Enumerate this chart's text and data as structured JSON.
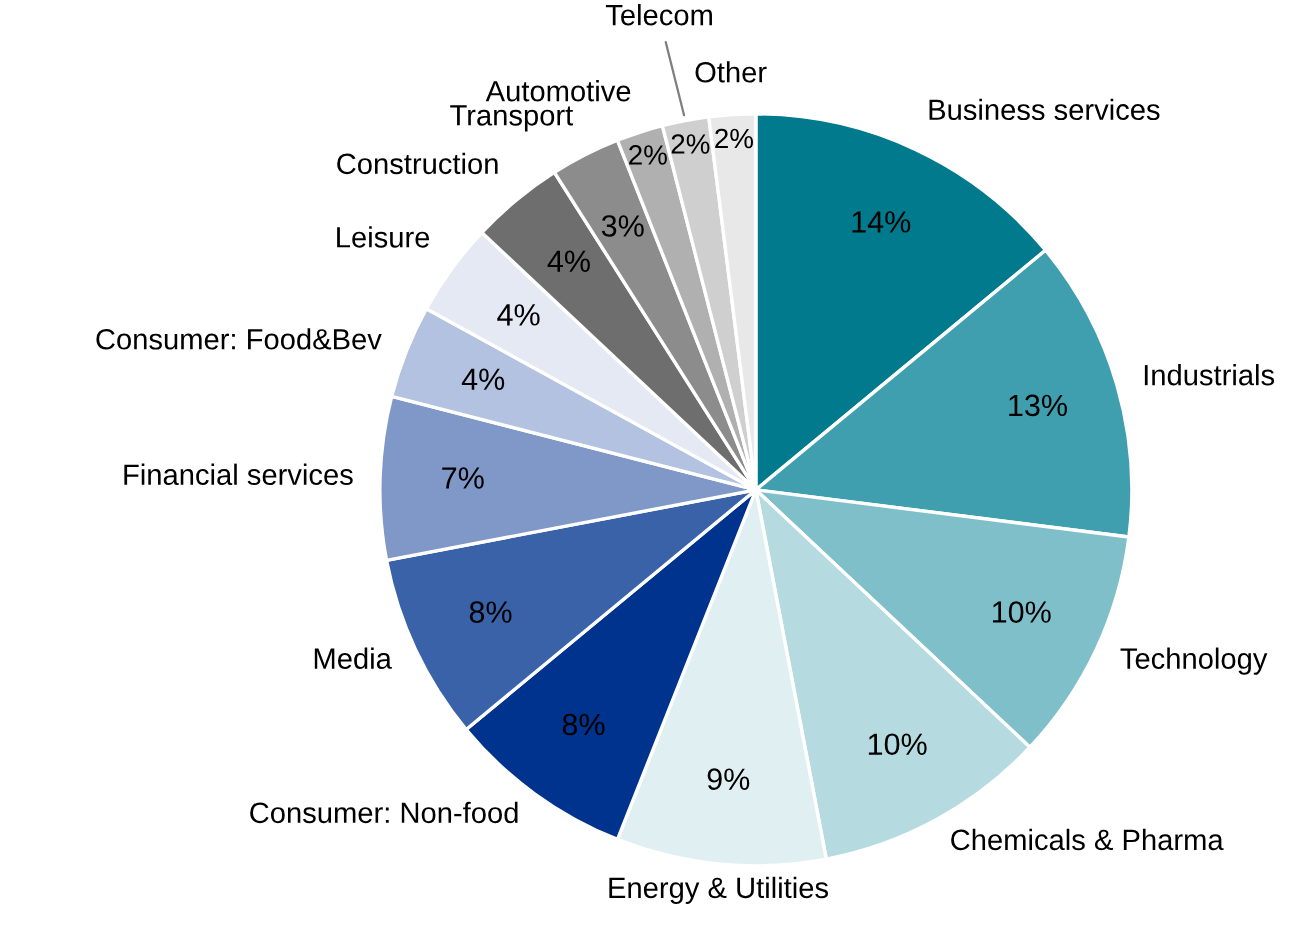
{
  "chart_data": {
    "type": "pie",
    "categories": [
      "Business services",
      "Industrials",
      "Technology",
      "Chemicals & Pharma",
      "Energy & Utilities",
      "Consumer: Non-food",
      "Media",
      "Financial services",
      "Consumer: Food&Bev",
      "Leisure",
      "Construction",
      "Transport",
      "Automotive",
      "Telecom",
      "Other"
    ],
    "values": [
      14,
      13,
      10,
      10,
      9,
      8,
      8,
      7,
      4,
      4,
      4,
      3,
      2,
      2,
      2
    ],
    "colors": [
      "#007a8c",
      "#3f9fae",
      "#7fbfca",
      "#b5dbe0",
      "#e0f0f2",
      "#00338d",
      "#3a62a8",
      "#7f98c8",
      "#b3c2e0",
      "#e4e9f4",
      "#6e6e6e",
      "#8c8c8c",
      "#b0b0b0",
      "#cfcfcf",
      "#e8e8e8"
    ],
    "value_labels": [
      "14%",
      "13%",
      "10%",
      "10%",
      "9%",
      "8%",
      "8%",
      "7%",
      "4%",
      "4%",
      "4%",
      "3%",
      "2%",
      "2%",
      "2%"
    ],
    "legend": false
  }
}
